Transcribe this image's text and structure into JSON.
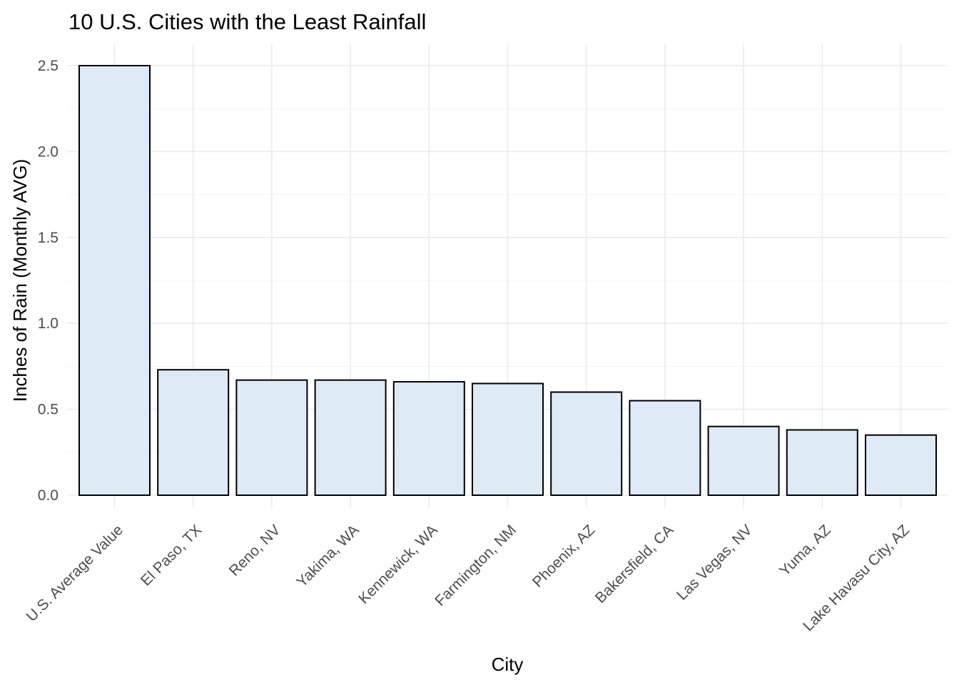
{
  "chart_data": {
    "type": "bar",
    "title": "10 U.S. Cities with the Least Rainfall",
    "xlabel": "City",
    "ylabel": "Inches of Rain (Monthly AVG)",
    "categories": [
      "U.S. Average Value",
      "El Paso, TX",
      "Reno, NV",
      "Yakima, WA",
      "Kennewick, WA",
      "Farmington, NM",
      "Phoenix, AZ",
      "Bakersfield, CA",
      "Las Vegas, NV",
      "Yuma, AZ",
      "Lake Havasu City, AZ"
    ],
    "values": [
      2.5,
      0.73,
      0.67,
      0.67,
      0.66,
      0.65,
      0.6,
      0.55,
      0.4,
      0.38,
      0.35
    ],
    "ylim": [
      0,
      2.5
    ],
    "yticks": [
      "0.0",
      "0.5",
      "1.0",
      "1.5",
      "2.0",
      "2.5"
    ],
    "grid": true,
    "bar_fill": "#deeaf6",
    "bar_outline": "#000000",
    "legend": "none"
  }
}
